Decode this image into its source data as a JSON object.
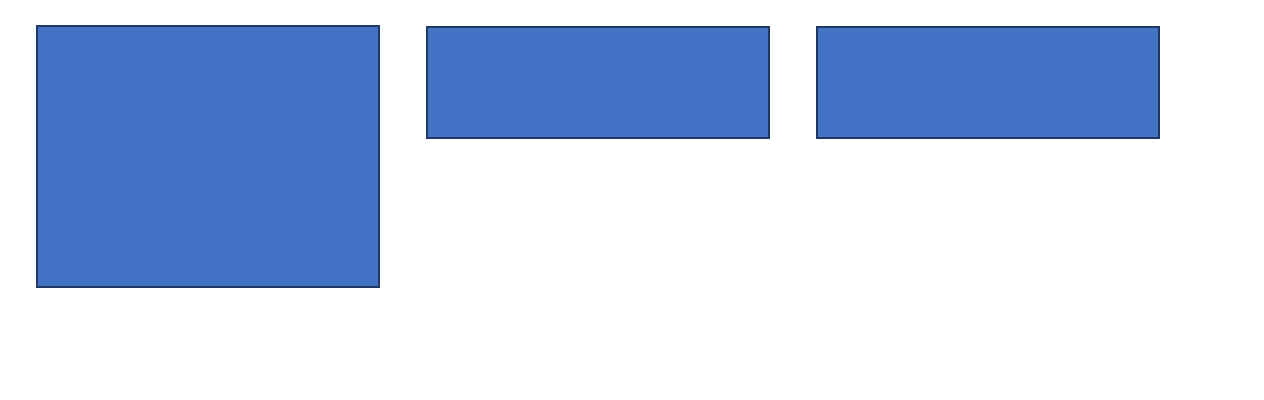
{
  "colors": {
    "background": "#ffffff",
    "shape_fill": "#4472c4",
    "shape_border": "#1f3864"
  },
  "shapes": [
    {
      "name": "large-rectangle",
      "text": ""
    },
    {
      "name": "rectangle-middle",
      "text": ""
    },
    {
      "name": "rectangle-right",
      "text": ""
    }
  ]
}
